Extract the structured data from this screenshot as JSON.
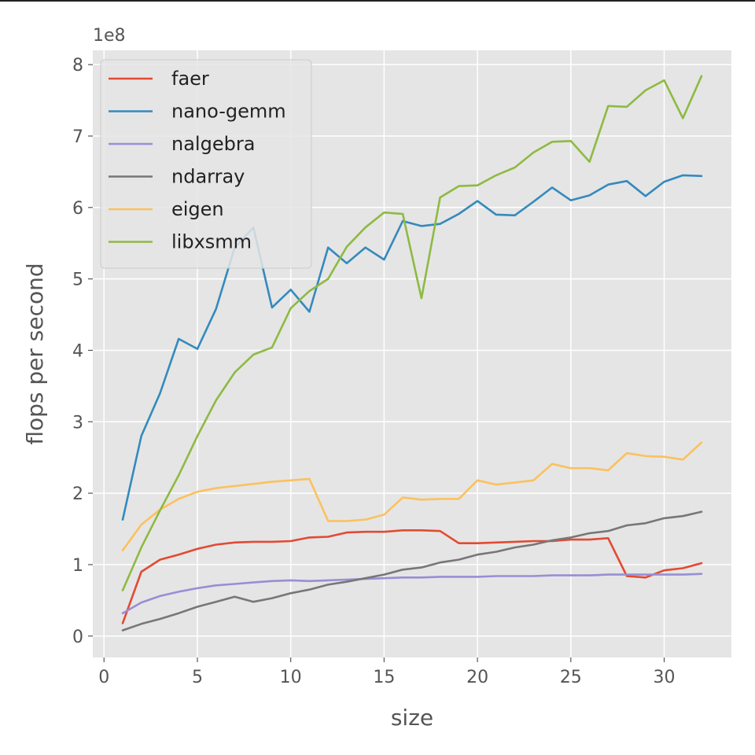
{
  "chart_data": {
    "type": "line",
    "xlabel": "size",
    "ylabel": "flops per second",
    "y_offset_label": "1e8",
    "xlim": [
      -0.6,
      33.6
    ],
    "ylim": [
      -0.3,
      8.2
    ],
    "xticks": [
      0,
      5,
      10,
      15,
      20,
      25,
      30
    ],
    "yticks": [
      0,
      1,
      2,
      3,
      4,
      5,
      6,
      7,
      8
    ],
    "grid": true,
    "legend_position": "top-left",
    "x": [
      1,
      2,
      3,
      4,
      5,
      6,
      7,
      8,
      9,
      10,
      11,
      12,
      13,
      14,
      15,
      16,
      17,
      18,
      19,
      20,
      21,
      22,
      23,
      24,
      25,
      26,
      27,
      28,
      29,
      30,
      31,
      32
    ],
    "series": [
      {
        "name": "faer",
        "color": "#E24A33",
        "values": [
          0.18,
          0.9,
          1.07,
          1.14,
          1.22,
          1.28,
          1.31,
          1.32,
          1.32,
          1.33,
          1.38,
          1.39,
          1.45,
          1.46,
          1.46,
          1.48,
          1.48,
          1.47,
          1.3,
          1.3,
          1.31,
          1.32,
          1.33,
          1.33,
          1.35,
          1.35,
          1.37,
          0.84,
          0.82,
          0.92,
          0.95,
          1.02
        ]
      },
      {
        "name": "nano-gemm",
        "color": "#348ABD",
        "values": [
          1.63,
          2.8,
          3.4,
          4.16,
          4.02,
          4.58,
          5.44,
          5.72,
          4.6,
          4.85,
          4.54,
          5.44,
          5.22,
          5.44,
          5.27,
          5.81,
          5.74,
          5.77,
          5.91,
          6.09,
          5.9,
          5.89,
          6.08,
          6.28,
          6.1,
          6.17,
          6.32,
          6.37,
          6.16,
          6.36,
          6.45,
          6.44
        ]
      },
      {
        "name": "nalgebra",
        "color": "#988ED5",
        "values": [
          0.32,
          0.47,
          0.56,
          0.62,
          0.67,
          0.71,
          0.73,
          0.75,
          0.77,
          0.78,
          0.77,
          0.78,
          0.79,
          0.8,
          0.81,
          0.82,
          0.82,
          0.83,
          0.83,
          0.83,
          0.84,
          0.84,
          0.84,
          0.85,
          0.85,
          0.85,
          0.86,
          0.86,
          0.86,
          0.86,
          0.86,
          0.87
        ]
      },
      {
        "name": "ndarray",
        "color": "#777777",
        "values": [
          0.08,
          0.17,
          0.24,
          0.32,
          0.41,
          0.48,
          0.55,
          0.48,
          0.53,
          0.6,
          0.65,
          0.72,
          0.76,
          0.81,
          0.86,
          0.93,
          0.96,
          1.03,
          1.07,
          1.14,
          1.18,
          1.24,
          1.28,
          1.34,
          1.38,
          1.44,
          1.47,
          1.55,
          1.58,
          1.65,
          1.68,
          1.74
        ]
      },
      {
        "name": "eigen",
        "color": "#FBC15E",
        "values": [
          1.2,
          1.56,
          1.77,
          1.92,
          2.02,
          2.07,
          2.1,
          2.13,
          2.16,
          2.18,
          2.2,
          1.61,
          1.61,
          1.63,
          1.7,
          1.94,
          1.91,
          1.92,
          1.92,
          2.18,
          2.12,
          2.15,
          2.18,
          2.41,
          2.35,
          2.35,
          2.32,
          2.56,
          2.52,
          2.51,
          2.47,
          2.71
        ]
      },
      {
        "name": "libxsmm",
        "color": "#8EBA42",
        "values": [
          0.64,
          1.24,
          1.76,
          2.25,
          2.8,
          3.3,
          3.69,
          3.94,
          4.04,
          4.59,
          4.83,
          5.0,
          5.45,
          5.72,
          5.93,
          5.91,
          4.73,
          6.14,
          6.3,
          6.31,
          6.45,
          6.56,
          6.77,
          6.92,
          6.93,
          6.64,
          7.42,
          7.41,
          7.64,
          7.78,
          7.25,
          7.84
        ]
      }
    ]
  }
}
